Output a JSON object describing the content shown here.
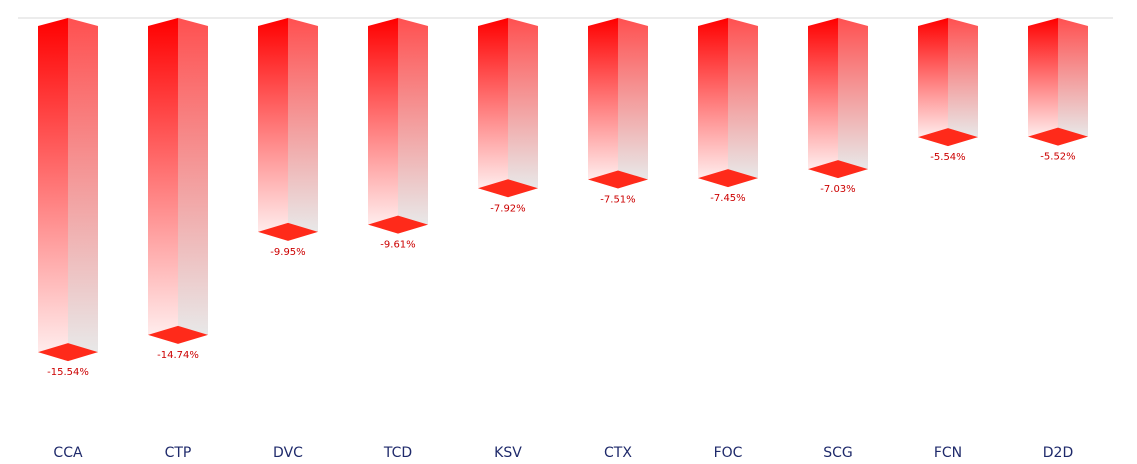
{
  "chart_data": {
    "type": "bar",
    "categories": [
      "CCA",
      "CTP",
      "DVC",
      "TCD",
      "KSV",
      "CTX",
      "FOC",
      "SCG",
      "FCN",
      "D2D"
    ],
    "values": [
      -15.54,
      -14.74,
      -9.95,
      -9.61,
      -7.92,
      -7.51,
      -7.45,
      -7.03,
      -5.54,
      -5.52
    ],
    "value_labels": [
      "-15.54%",
      "-14.74%",
      "-9.95%",
      "-9.61%",
      "-7.92%",
      "-7.51%",
      "-7.45%",
      "-7.03%",
      "-5.54%",
      "-5.52%"
    ],
    "ylim": [
      -16.7,
      0
    ],
    "grid": false,
    "legend": "none",
    "colors": {
      "bar": "#ff0000",
      "bar_light": "#ffecec",
      "side_dark": "#ff5050",
      "side_light": "#e8e8e8",
      "bottom_cap": "#ff2a1a",
      "value_label": "#cc0000",
      "category_label": "#1f2a6b",
      "baseline": "#d8d8d8"
    }
  }
}
